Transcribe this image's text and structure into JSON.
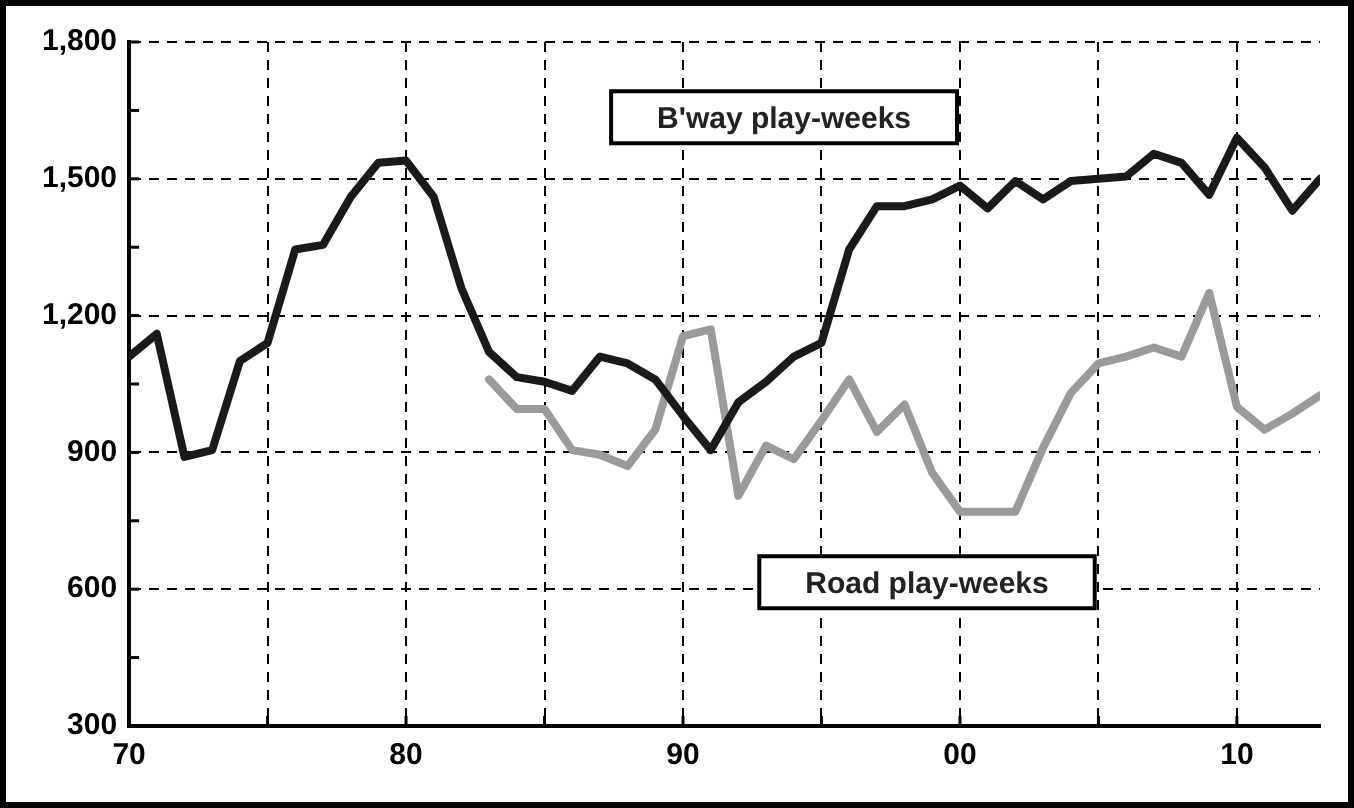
{
  "chart_data": {
    "type": "line",
    "x": [
      1970,
      1971,
      1972,
      1973,
      1974,
      1975,
      1976,
      1977,
      1978,
      1979,
      1980,
      1981,
      1982,
      1983,
      1984,
      1985,
      1986,
      1987,
      1988,
      1989,
      1990,
      1991,
      1992,
      1993,
      1994,
      1995,
      1996,
      1997,
      1998,
      1999,
      2000,
      2001,
      2002,
      2003,
      2004,
      2005,
      2006,
      2007,
      2008,
      2009,
      2010,
      2011,
      2012,
      2013
    ],
    "series": [
      {
        "name": "B'way play-weeks",
        "color": "#1a1a1a",
        "values": [
          1110,
          1160,
          890,
          905,
          1100,
          1140,
          1345,
          1355,
          1460,
          1535,
          1540,
          1460,
          1260,
          1120,
          1065,
          1055,
          1035,
          1110,
          1095,
          1060,
          980,
          905,
          1010,
          1055,
          1110,
          1140,
          1345,
          1440,
          1440,
          1455,
          1485,
          1435,
          1495,
          1455,
          1495,
          1500,
          1505,
          1555,
          1535,
          1465,
          1590,
          1525,
          1430,
          1500
        ]
      },
      {
        "name": "Road play-weeks",
        "color": "#9a9a9a",
        "values": [
          null,
          null,
          null,
          null,
          null,
          null,
          null,
          null,
          null,
          null,
          null,
          null,
          null,
          1060,
          995,
          995,
          905,
          895,
          870,
          950,
          1155,
          1170,
          805,
          915,
          885,
          970,
          1060,
          945,
          1005,
          855,
          770,
          770,
          770,
          910,
          1030,
          1095,
          1110,
          1130,
          1110,
          1250,
          1000,
          950,
          985,
          1025
        ]
      }
    ],
    "xlim": [
      1970,
      2013
    ],
    "xticks": [
      {
        "value": 1970,
        "label": "70"
      },
      {
        "value": 1975,
        "label": null
      },
      {
        "value": 1980,
        "label": "80"
      },
      {
        "value": 1985,
        "label": null
      },
      {
        "value": 1990,
        "label": "90"
      },
      {
        "value": 1995,
        "label": null
      },
      {
        "value": 2000,
        "label": "00"
      },
      {
        "value": 2005,
        "label": null
      },
      {
        "value": 2010,
        "label": "10"
      }
    ],
    "ylim": [
      300,
      1800
    ],
    "yticks": [
      {
        "value": 300,
        "label": "300"
      },
      {
        "value": 450,
        "label": null
      },
      {
        "value": 600,
        "label": "600"
      },
      {
        "value": 750,
        "label": null
      },
      {
        "value": 900,
        "label": "900"
      },
      {
        "value": 1050,
        "label": null
      },
      {
        "value": 1200,
        "label": "1,200"
      },
      {
        "value": 1350,
        "label": null
      },
      {
        "value": 1500,
        "label": "1,500"
      },
      {
        "value": 1650,
        "label": null
      },
      {
        "value": 1800,
        "label": "1,800"
      }
    ],
    "grid": true,
    "legend": false,
    "marker": "none",
    "line_style": "solid"
  }
}
